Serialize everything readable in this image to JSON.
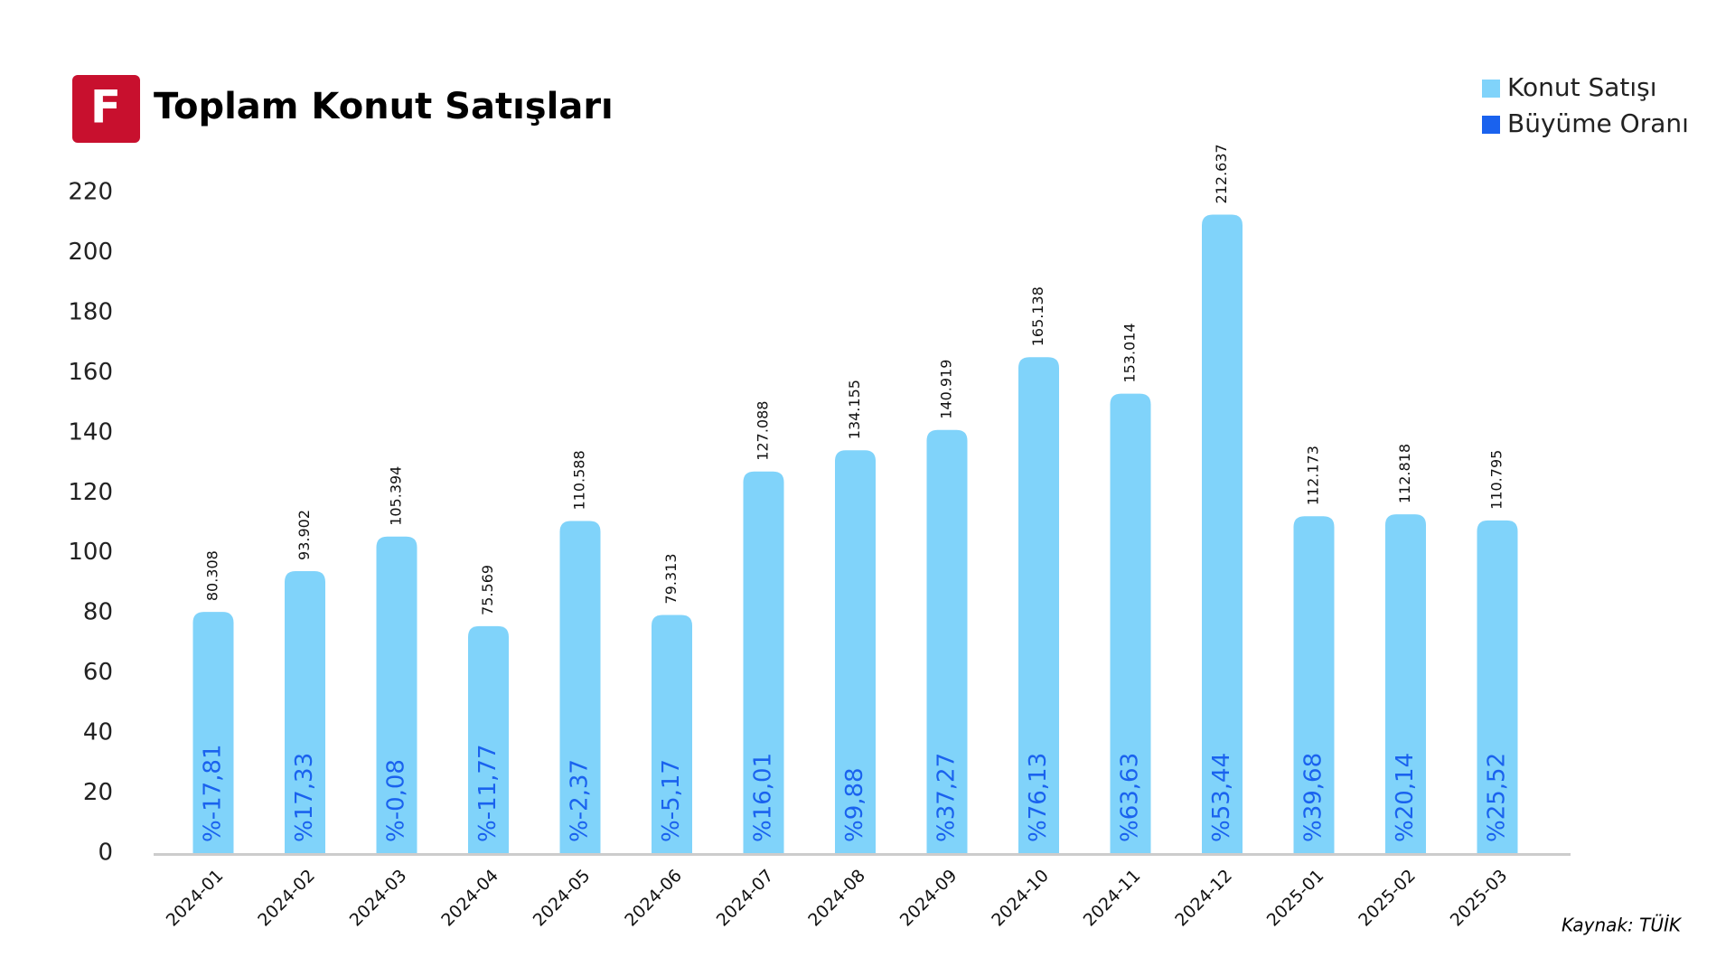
{
  "chart_data": {
    "type": "bar",
    "title": "Toplam Konut Satışları",
    "logo": "F",
    "source": "Kaynak: TÜİK",
    "categories": [
      "2024-01",
      "2024-02",
      "2024-03",
      "2024-04",
      "2024-05",
      "2024-06",
      "2024-07",
      "2024-08",
      "2024-09",
      "2024-10",
      "2024-11",
      "2024-12",
      "2025-01",
      "2025-02",
      "2025-03"
    ],
    "series": [
      {
        "name": "Konut Satışı",
        "color": "#80d3fa",
        "values": [
          80.308,
          93.902,
          105.394,
          75.569,
          110.588,
          79.313,
          127.088,
          134.155,
          140.919,
          165.138,
          153.014,
          212.637,
          112.173,
          112.818,
          110.795
        ]
      },
      {
        "name": "Büyüme Oranı",
        "color": "#1a62ee",
        "values": [
          -17.81,
          17.33,
          -0.08,
          -11.77,
          -2.37,
          -5.17,
          16.01,
          9.88,
          37.27,
          76.13,
          63.63,
          53.44,
          39.68,
          20.14,
          25.52
        ],
        "value_labels": [
          "%-17,81",
          "%17,33",
          "%-0,08",
          "%-11,77",
          "%-2,37",
          "%-5,17",
          "%16,01",
          "%9,88",
          "%37,27",
          "%76,13",
          "%63,63",
          "%53,44",
          "%39,68",
          "%20,14",
          "%25,52"
        ]
      }
    ],
    "ylim": [
      0,
      220
    ],
    "yticks": [
      0,
      20,
      40,
      60,
      80,
      100,
      120,
      140,
      160,
      180,
      200,
      220
    ],
    "grid": false,
    "legend": "top-right"
  }
}
